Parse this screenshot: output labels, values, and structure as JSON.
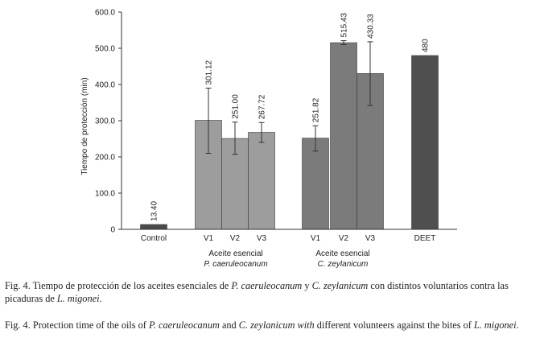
{
  "chart_data": {
    "type": "bar",
    "ylabel": "Tiempo de protección (min)",
    "ylim": [
      0,
      600
    ],
    "yticks": [
      "0",
      "100.0",
      "200.0",
      "300.0",
      "400.0",
      "500.0",
      "600.0"
    ],
    "categories": [
      "Control",
      "V1",
      "V2",
      "V3",
      "V1",
      "V2",
      "V3",
      "DEET"
    ],
    "values": [
      13.4,
      301.12,
      251.0,
      267.72,
      251.82,
      515.43,
      430.33,
      480
    ],
    "value_labels": [
      "13.40",
      "301.12",
      "251.00",
      "267.72",
      "251.82",
      "515.43",
      "430.33",
      "480"
    ],
    "error_low": [
      null,
      210,
      207,
      240,
      216,
      510,
      342,
      null
    ],
    "error_high": [
      null,
      390,
      296,
      295,
      286,
      521,
      518,
      null
    ],
    "groups": [
      {
        "line1": "Aceite esencial",
        "line2": "P. caeruleocanum"
      },
      {
        "line1": "Aceite esencial",
        "line2": "C. zeylanicum"
      }
    ],
    "colors": {
      "control": "#4a4a4a",
      "group1": "#9d9d9d",
      "group2": "#7b7b7b",
      "deet": "#4f4f4f",
      "axis": "#333333"
    }
  },
  "captions": {
    "es": {
      "p1": "Fig. 4. Tiempo de protección de los aceites esenciales de ",
      "i1": "P. caeruleocanum",
      "p2": " y ",
      "i2": "C. zeylanicum",
      "p3": " con distintos voluntarios contra las picaduras de ",
      "i3": "L. migonei",
      "p4": "."
    },
    "en": {
      "p1": "Fig. 4. Protection time of the oils of ",
      "i1": "P. caeruleocanum",
      "p2": " and ",
      "i2": "C. zeylanicum with",
      "p3": " different volunteers against the bites of ",
      "i3": "L. migonei",
      "p4": "."
    }
  }
}
